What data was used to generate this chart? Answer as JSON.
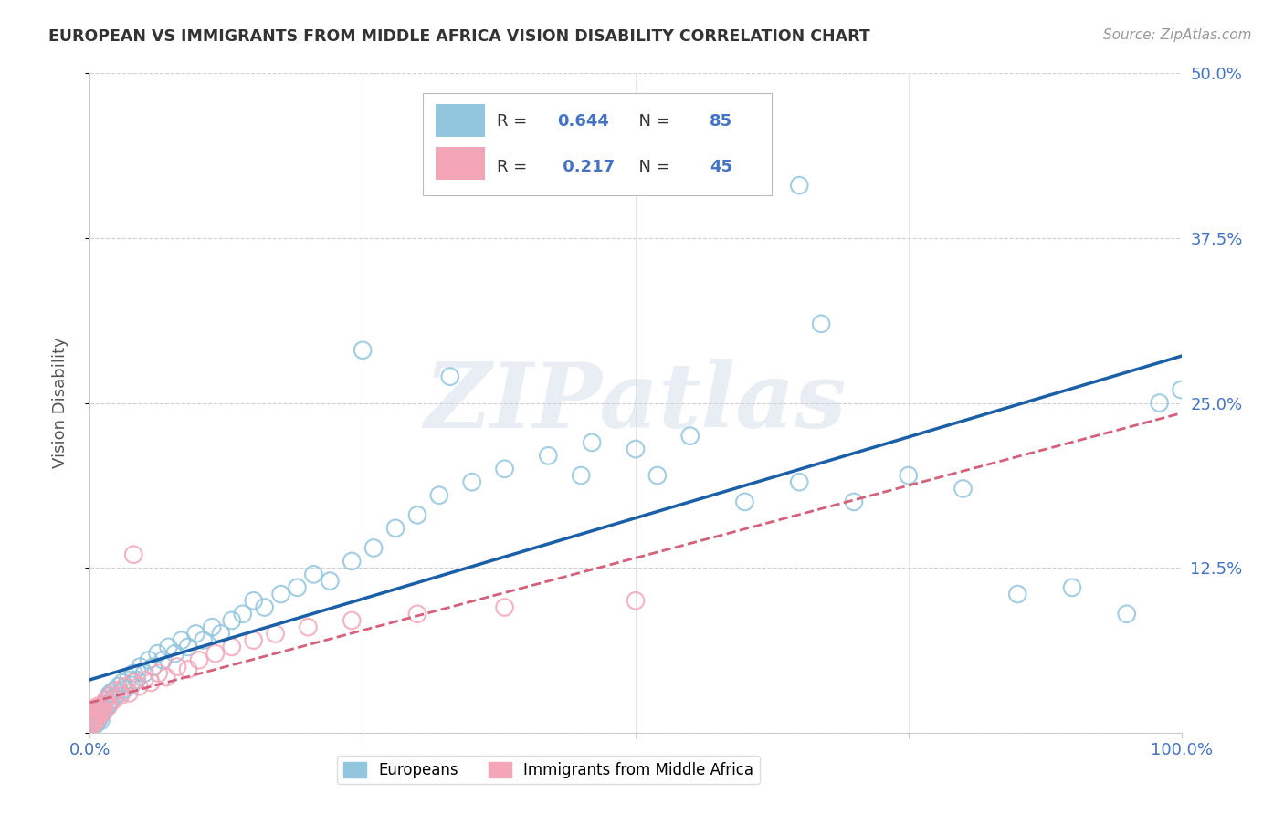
{
  "title": "EUROPEAN VS IMMIGRANTS FROM MIDDLE AFRICA VISION DISABILITY CORRELATION CHART",
  "source": "Source: ZipAtlas.com",
  "ylabel": "Vision Disability",
  "background_color": "#ffffff",
  "grid_color": "#d0d0d0",
  "blue_color": "#92c5de",
  "blue_line_color": "#1a5fa8",
  "pink_color": "#f4a6b8",
  "pink_line_color": "#d4607a",
  "r_blue": "0.644",
  "n_blue": "85",
  "r_pink": "0.217",
  "n_pink": "45",
  "xlim": [
    0.0,
    1.0
  ],
  "ylim": [
    0.0,
    0.5
  ],
  "blue_scatter_x": [
    0.001,
    0.002,
    0.003,
    0.003,
    0.004,
    0.004,
    0.005,
    0.005,
    0.006,
    0.006,
    0.007,
    0.007,
    0.008,
    0.008,
    0.009,
    0.01,
    0.01,
    0.011,
    0.012,
    0.013,
    0.014,
    0.015,
    0.016,
    0.017,
    0.018,
    0.019,
    0.02,
    0.022,
    0.024,
    0.026,
    0.028,
    0.03,
    0.032,
    0.035,
    0.038,
    0.04,
    0.043,
    0.046,
    0.05,
    0.054,
    0.058,
    0.062,
    0.067,
    0.072,
    0.078,
    0.084,
    0.09,
    0.097,
    0.104,
    0.112,
    0.12,
    0.13,
    0.14,
    0.15,
    0.16,
    0.175,
    0.19,
    0.205,
    0.22,
    0.24,
    0.26,
    0.28,
    0.3,
    0.32,
    0.35,
    0.38,
    0.42,
    0.46,
    0.5,
    0.55,
    0.6,
    0.65,
    0.7,
    0.75,
    0.8,
    0.85,
    0.9,
    0.95,
    0.98,
    1.0,
    0.25,
    0.33,
    0.45,
    0.52,
    0.67
  ],
  "blue_scatter_y": [
    0.005,
    0.008,
    0.006,
    0.012,
    0.007,
    0.015,
    0.006,
    0.01,
    0.008,
    0.014,
    0.009,
    0.016,
    0.01,
    0.018,
    0.012,
    0.009,
    0.02,
    0.015,
    0.018,
    0.022,
    0.017,
    0.025,
    0.02,
    0.028,
    0.022,
    0.03,
    0.025,
    0.032,
    0.028,
    0.035,
    0.03,
    0.038,
    0.033,
    0.04,
    0.036,
    0.045,
    0.04,
    0.05,
    0.045,
    0.055,
    0.05,
    0.06,
    0.055,
    0.065,
    0.06,
    0.07,
    0.065,
    0.075,
    0.07,
    0.08,
    0.075,
    0.085,
    0.09,
    0.1,
    0.095,
    0.105,
    0.11,
    0.12,
    0.115,
    0.13,
    0.14,
    0.155,
    0.165,
    0.18,
    0.19,
    0.2,
    0.21,
    0.22,
    0.215,
    0.225,
    0.175,
    0.19,
    0.175,
    0.195,
    0.185,
    0.105,
    0.11,
    0.09,
    0.25,
    0.26,
    0.29,
    0.27,
    0.195,
    0.195,
    0.31
  ],
  "blue_outlier_x": [
    0.65
  ],
  "blue_outlier_y": [
    0.415
  ],
  "pink_scatter_x": [
    0.001,
    0.002,
    0.002,
    0.003,
    0.003,
    0.004,
    0.004,
    0.005,
    0.005,
    0.006,
    0.006,
    0.007,
    0.007,
    0.008,
    0.009,
    0.01,
    0.011,
    0.012,
    0.013,
    0.015,
    0.017,
    0.019,
    0.022,
    0.025,
    0.028,
    0.032,
    0.036,
    0.04,
    0.045,
    0.05,
    0.056,
    0.063,
    0.07,
    0.08,
    0.09,
    0.1,
    0.115,
    0.13,
    0.15,
    0.17,
    0.2,
    0.24,
    0.3,
    0.38,
    0.5
  ],
  "pink_scatter_y": [
    0.005,
    0.007,
    0.012,
    0.008,
    0.015,
    0.01,
    0.018,
    0.008,
    0.014,
    0.01,
    0.018,
    0.012,
    0.02,
    0.015,
    0.018,
    0.014,
    0.02,
    0.016,
    0.022,
    0.025,
    0.02,
    0.028,
    0.025,
    0.032,
    0.028,
    0.035,
    0.03,
    0.038,
    0.035,
    0.04,
    0.038,
    0.045,
    0.042,
    0.05,
    0.048,
    0.055,
    0.06,
    0.065,
    0.07,
    0.075,
    0.08,
    0.085,
    0.09,
    0.095,
    0.1
  ],
  "pink_outlier_x": [
    0.04
  ],
  "pink_outlier_y": [
    0.135
  ],
  "watermark_text": "ZIPatlas",
  "legend_r_label": "R = ",
  "legend_n_label": "N = "
}
